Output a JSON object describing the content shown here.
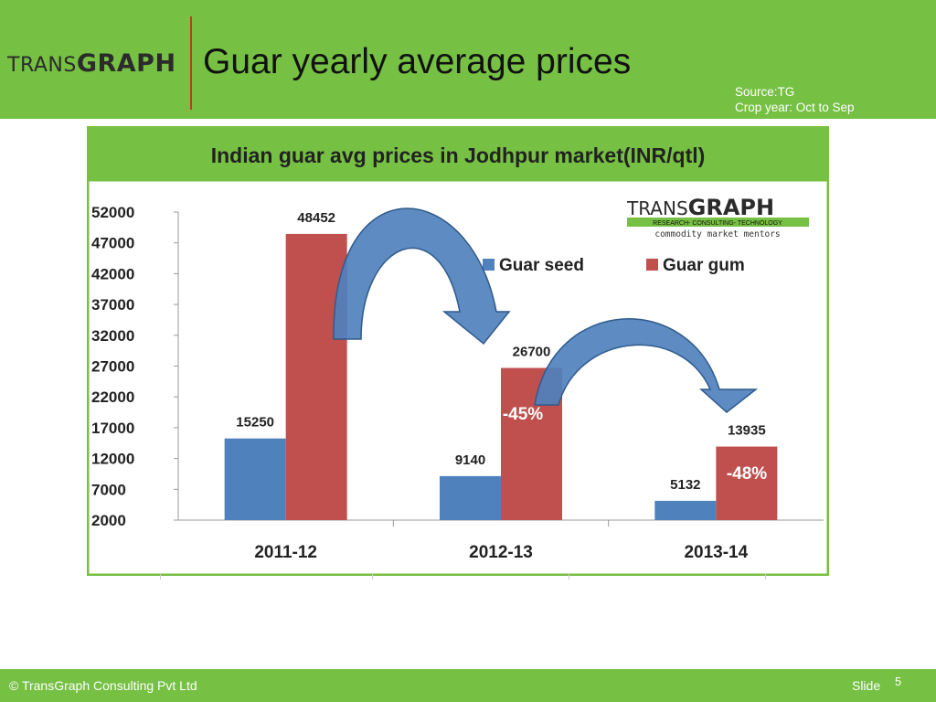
{
  "header": {
    "logo_thin": "TRANS",
    "logo_bold": "GRAPH",
    "title": "Guar yearly average prices",
    "source_line1": "Source:TG",
    "source_line2": "Crop year: Oct to Sep"
  },
  "footer": {
    "copyright": "© TransGraph Consulting Pvt Ltd",
    "slide_label": "Slide",
    "slide_number": "5"
  },
  "inset_logo": {
    "name_thin": "TRANS",
    "name_bold": "GRAPH",
    "tagline": "RESEARCH- CONSULTING- TECHNOLOGY",
    "subtitle": "commodity market mentors"
  },
  "colors": {
    "green": "#76c043",
    "seed": "#4f81bd",
    "gum": "#c0504d",
    "arrow": "#4f81bd"
  },
  "chart_data": {
    "type": "bar",
    "title": "Indian guar avg prices in Jodhpur market(INR/qtl)",
    "categories": [
      "2011-12",
      "2012-13",
      "2013-14"
    ],
    "series": [
      {
        "name": "Guar seed",
        "values": [
          15250,
          9140,
          5132
        ],
        "labels": [
          "15250",
          "9140",
          "5132"
        ]
      },
      {
        "name": "Guar gum",
        "values": [
          48452,
          26700,
          13935
        ],
        "labels": [
          "48452",
          "26700",
          "13935"
        ]
      }
    ],
    "yticks": [
      "2000",
      "7000",
      "12000",
      "17000",
      "22000",
      "27000",
      "32000",
      "37000",
      "42000",
      "47000",
      "52000"
    ],
    "ylim": [
      2000,
      52000
    ],
    "legend": "top-right",
    "grid": false,
    "annotations": [
      "-45%",
      "-48%"
    ]
  }
}
